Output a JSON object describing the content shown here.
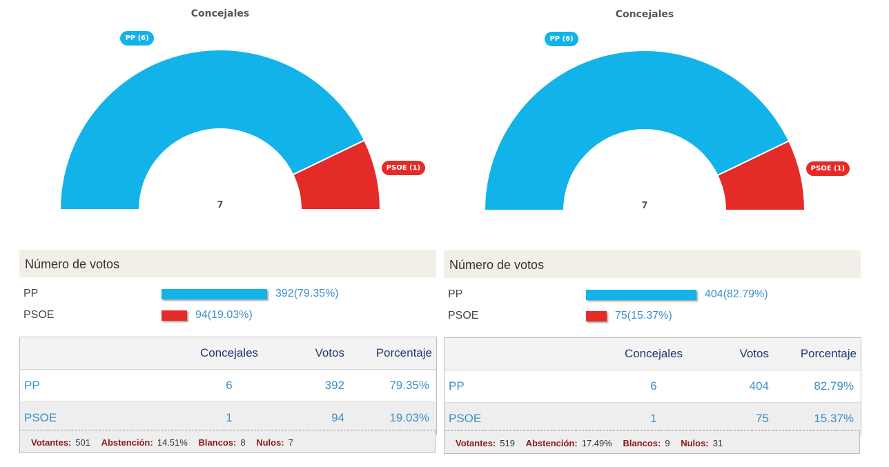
{
  "colors": {
    "PP": "#12b3e8",
    "PSOE": "#e52b27"
  },
  "panels": [
    {
      "chart_data": {
        "type": "pie",
        "title": "Concejales",
        "total_label": "7",
        "slices": [
          {
            "name": "PP",
            "value": 6,
            "label": "PP (6)"
          },
          {
            "name": "PSOE",
            "value": 1,
            "label": "PSOE (1)"
          }
        ]
      },
      "votes_header": "Número de votos",
      "bars": [
        {
          "party": "PP",
          "votes": 392,
          "value_label": "392(79.35%)",
          "percent": 79.35
        },
        {
          "party": "PSOE",
          "votes": 94,
          "value_label": "94(19.03%)",
          "percent": 19.03
        }
      ],
      "table": {
        "headers": [
          "",
          "Concejales",
          "Votos",
          "Porcentaje"
        ],
        "rows": [
          {
            "party": "PP",
            "concejales": "6",
            "votos": "392",
            "porcentaje": "79.35%"
          },
          {
            "party": "PSOE",
            "concejales": "1",
            "votos": "94",
            "porcentaje": "19.03%"
          }
        ]
      },
      "footer": {
        "votantes_label": "Votantes:",
        "votantes": "501",
        "abstencion_label": "Abstención:",
        "abstencion": "14.51%",
        "blancos_label": "Blancos:",
        "blancos": "8",
        "nulos_label": "Nulos:",
        "nulos": "7"
      }
    },
    {
      "chart_data": {
        "type": "pie",
        "title": "Concejales",
        "total_label": "7",
        "slices": [
          {
            "name": "PP",
            "value": 6,
            "label": "PP (6)"
          },
          {
            "name": "PSOE",
            "value": 1,
            "label": "PSOE (1)"
          }
        ]
      },
      "votes_header": "Número de votos",
      "bars": [
        {
          "party": "PP",
          "votes": 404,
          "value_label": "404(82.79%)",
          "percent": 82.79
        },
        {
          "party": "PSOE",
          "votes": 75,
          "value_label": "75(15.37%)",
          "percent": 15.37
        }
      ],
      "table": {
        "headers": [
          "",
          "Concejales",
          "Votos",
          "Porcentaje"
        ],
        "rows": [
          {
            "party": "PP",
            "concejales": "6",
            "votos": "404",
            "porcentaje": "82.79%"
          },
          {
            "party": "PSOE",
            "concejales": "1",
            "votos": "75",
            "porcentaje": "15.37%"
          }
        ]
      },
      "footer": {
        "votantes_label": "Votantes:",
        "votantes": "519",
        "abstencion_label": "Abstención:",
        "abstencion": "17.49%",
        "blancos_label": "Blancos:",
        "blancos": "9",
        "nulos_label": "Nulos:",
        "nulos": "31"
      }
    }
  ]
}
